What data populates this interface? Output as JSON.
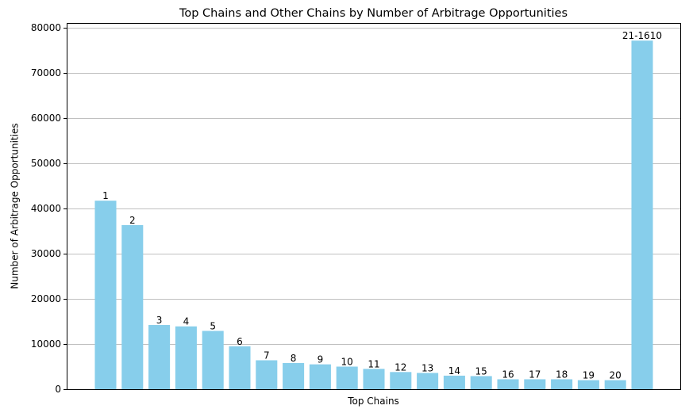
{
  "chart_data": {
    "type": "bar",
    "title": "Top Chains and Other Chains by Number of Arbitrage Opportunities",
    "xlabel": "Top Chains",
    "ylabel": "Number of Arbitrage Opportunities",
    "ylim": [
      0,
      81000
    ],
    "yticks": [
      0,
      10000,
      20000,
      30000,
      40000,
      50000,
      60000,
      70000,
      80000
    ],
    "grid": "horizontal",
    "xticks_visible": false,
    "bar_color": "#87ceeb",
    "grid_color": "#c0c0c0",
    "categories": [
      "1",
      "2",
      "3",
      "4",
      "5",
      "6",
      "7",
      "8",
      "9",
      "10",
      "11",
      "12",
      "13",
      "14",
      "15",
      "16",
      "17",
      "18",
      "19",
      "20",
      "21-1610"
    ],
    "values": [
      41700,
      36300,
      14200,
      13900,
      12900,
      9500,
      6400,
      5800,
      5500,
      5000,
      4500,
      3800,
      3600,
      3000,
      2900,
      2200,
      2200,
      2200,
      2000,
      2000,
      77100
    ]
  }
}
